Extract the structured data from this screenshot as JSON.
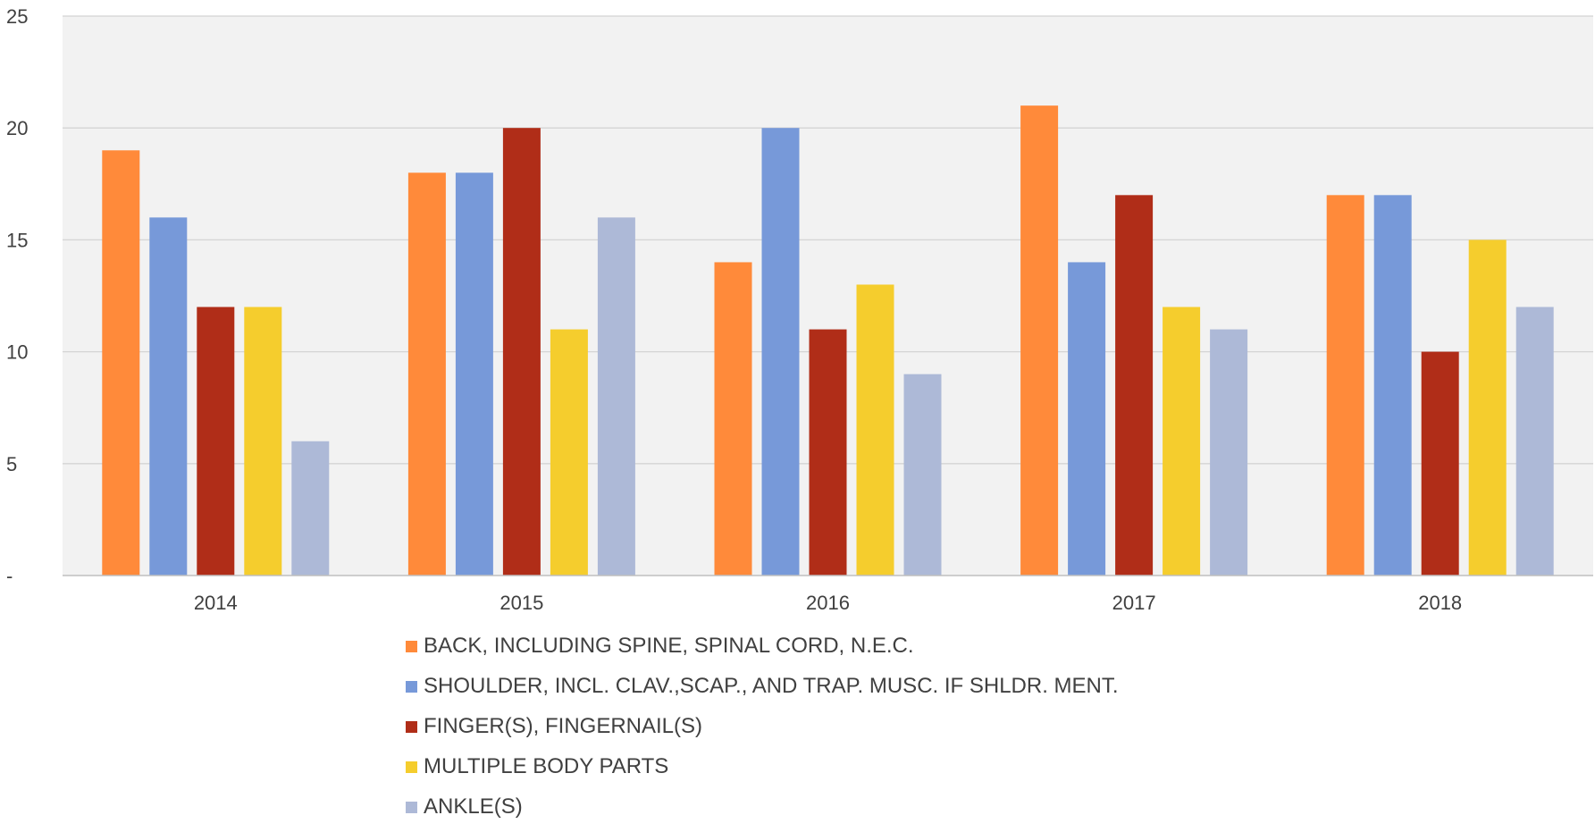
{
  "chart_data": {
    "type": "bar",
    "title": "",
    "xlabel": "",
    "ylabel": "",
    "categories": [
      "2014",
      "2015",
      "2016",
      "2017",
      "2018"
    ],
    "ylim": [
      0,
      25
    ],
    "yticks": [
      0,
      5,
      10,
      15,
      20,
      25
    ],
    "ytick_labels": [
      "-",
      "5",
      "10",
      "15",
      "20",
      "25"
    ],
    "grid": true,
    "legend_position": "bottom",
    "plot_background": "#f2f2f2",
    "series": [
      {
        "name": "BACK, INCLUDING SPINE, SPINAL CORD, N.E.C.",
        "color": "#ff8a3a",
        "values": [
          19,
          18,
          14,
          21,
          17
        ]
      },
      {
        "name": "SHOULDER, INCL. CLAV.,SCAP., AND TRAP. MUSC. IF SHLDR. MENT.",
        "color": "#7799d9",
        "values": [
          16,
          18,
          20,
          14,
          17
        ]
      },
      {
        "name": "FINGER(S), FINGERNAIL(S)",
        "color": "#b02d18",
        "values": [
          12,
          20,
          11,
          17,
          10
        ]
      },
      {
        "name": "MULTIPLE BODY PARTS",
        "color": "#f5cd2d",
        "values": [
          12,
          11,
          13,
          12,
          15
        ]
      },
      {
        "name": "ANKLE(S)",
        "color": "#adb9d7",
        "values": [
          6,
          16,
          9,
          11,
          12
        ]
      }
    ]
  }
}
